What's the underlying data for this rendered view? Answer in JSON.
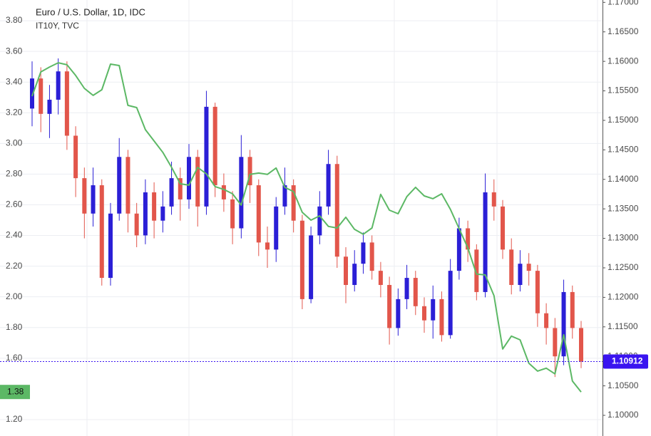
{
  "chart_data": {
    "type": "candlestick",
    "title": "Euro / U.S. Dollar, 1D, IDC",
    "open": [
      1.152,
      1.1571,
      1.1511,
      1.1535,
      1.1583,
      1.1474,
      1.1402,
      1.1342,
      1.139,
      1.1233,
      1.1342,
      1.1438,
      1.1342,
      1.1305,
      1.1378,
      1.133,
      1.1354,
      1.1402,
      1.1366,
      1.1438,
      1.1354,
      1.1523,
      1.139,
      1.1366,
      1.1317,
      1.1438,
      1.139,
      1.1293,
      1.1281,
      1.1354,
      1.139,
      1.133,
      1.1197,
      1.1305,
      1.1354,
      1.1426,
      1.1269,
      1.1221,
      1.1257,
      1.1293,
      1.1245,
      1.1221,
      1.1148,
      1.1197,
      1.1233,
      1.1185,
      1.1161,
      1.1197,
      1.1136,
      1.1245,
      1.1317,
      1.1281,
      1.1209,
      1.1378,
      1.1354,
      1.1281,
      1.1221,
      1.1257,
      1.1245,
      1.1173,
      1.1148,
      1.11,
      1.1209,
      1.1148
    ],
    "high": [
      1.16,
      1.159,
      1.156,
      1.1605,
      1.16,
      1.149,
      1.142,
      1.142,
      1.14,
      1.136,
      1.147,
      1.145,
      1.136,
      1.14,
      1.1395,
      1.138,
      1.143,
      1.142,
      1.146,
      1.145,
      1.155,
      1.153,
      1.141,
      1.138,
      1.1475,
      1.145,
      1.14,
      1.132,
      1.137,
      1.142,
      1.14,
      1.134,
      1.132,
      1.138,
      1.145,
      1.144,
      1.1285,
      1.128,
      1.131,
      1.1305,
      1.126,
      1.1235,
      1.1215,
      1.1255,
      1.1245,
      1.12,
      1.122,
      1.121,
      1.1265,
      1.1335,
      1.133,
      1.129,
      1.141,
      1.14,
      1.1365,
      1.13,
      1.128,
      1.1275,
      1.1255,
      1.119,
      1.1165,
      1.123,
      1.122,
      1.116
    ],
    "low": [
      1.149,
      1.148,
      1.147,
      1.151,
      1.145,
      1.137,
      1.13,
      1.132,
      1.122,
      1.122,
      1.133,
      1.131,
      1.1285,
      1.129,
      1.13,
      1.131,
      1.134,
      1.133,
      1.135,
      1.132,
      1.134,
      1.137,
      1.1345,
      1.129,
      1.13,
      1.136,
      1.127,
      1.125,
      1.126,
      1.134,
      1.131,
      1.118,
      1.119,
      1.129,
      1.134,
      1.125,
      1.119,
      1.121,
      1.124,
      1.123,
      1.12,
      1.112,
      1.1135,
      1.118,
      1.117,
      1.114,
      1.113,
      1.1125,
      1.113,
      1.123,
      1.126,
      1.1195,
      1.12,
      1.133,
      1.1265,
      1.1205,
      1.121,
      1.122,
      1.115,
      1.112,
      1.1065,
      1.1085,
      1.113,
      1.108
    ],
    "close": [
      1.1571,
      1.1511,
      1.1535,
      1.1583,
      1.1474,
      1.1402,
      1.1342,
      1.139,
      1.1233,
      1.1342,
      1.1438,
      1.1342,
      1.1305,
      1.1378,
      1.133,
      1.1354,
      1.1402,
      1.1366,
      1.1438,
      1.1354,
      1.1523,
      1.139,
      1.1366,
      1.1317,
      1.1438,
      1.139,
      1.1293,
      1.1281,
      1.1354,
      1.139,
      1.133,
      1.1197,
      1.1305,
      1.1354,
      1.1426,
      1.1269,
      1.1221,
      1.1257,
      1.1293,
      1.1245,
      1.1221,
      1.1148,
      1.1197,
      1.1233,
      1.1185,
      1.1161,
      1.1197,
      1.1136,
      1.1245,
      1.1317,
      1.1281,
      1.1209,
      1.1378,
      1.1354,
      1.1281,
      1.1221,
      1.1257,
      1.1245,
      1.1173,
      1.1148,
      1.11,
      1.1209,
      1.1148,
      1.10912
    ],
    "up_color": "#2b1fd6",
    "down_color": "#e2564b",
    "last_color": "#3a14f0",
    "series": [
      {
        "name": "IT10Y, TVC",
        "color": "#5cb865",
        "values": [
          3.308,
          3.466,
          3.498,
          3.526,
          3.513,
          3.443,
          3.359,
          3.313,
          3.35,
          3.517,
          3.508,
          3.248,
          3.234,
          3.09,
          3.016,
          2.942,
          2.844,
          2.737,
          2.728,
          2.844,
          2.802,
          2.719,
          2.7,
          2.672,
          2.598,
          2.798,
          2.807,
          2.798,
          2.84,
          2.714,
          2.686,
          2.551,
          2.5,
          2.528,
          2.459,
          2.449,
          2.519,
          2.44,
          2.408,
          2.449,
          2.668,
          2.565,
          2.542,
          2.654,
          2.714,
          2.658,
          2.64,
          2.672,
          2.57,
          2.445,
          2.319,
          2.148,
          2.143,
          2.008,
          1.66,
          1.744,
          1.72,
          1.567,
          1.516,
          1.535,
          1.498,
          1.753,
          1.451,
          1.38
        ]
      }
    ],
    "ylim": [
      1.093,
      3.935
    ],
    "yticks": [
      {
        "value": 3.8,
        "label": "3.80"
      },
      {
        "value": 3.6,
        "label": "3.60"
      },
      {
        "value": 3.4,
        "label": "3.40"
      },
      {
        "value": 3.2,
        "label": "3.20"
      },
      {
        "value": 3.0,
        "label": "3.00"
      },
      {
        "value": 2.8,
        "label": "2.80"
      },
      {
        "value": 2.6,
        "label": "2.60"
      },
      {
        "value": 2.4,
        "label": "2.40"
      },
      {
        "value": 2.2,
        "label": "2.20"
      },
      {
        "value": 2.0,
        "label": "2.00"
      },
      {
        "value": 1.8,
        "label": "1.80"
      },
      {
        "value": 1.6,
        "label": "1.60"
      },
      {
        "value": 1.2,
        "label": "1.20"
      }
    ],
    "y2lim": [
      1.0965,
      1.1704
    ],
    "y2ticks": [
      {
        "value": 1.17,
        "label": "1.17000"
      },
      {
        "value": 1.165,
        "label": "1.16500"
      },
      {
        "value": 1.16,
        "label": "1.16000"
      },
      {
        "value": 1.155,
        "label": "1.15500"
      },
      {
        "value": 1.15,
        "label": "1.15000"
      },
      {
        "value": 1.145,
        "label": "1.14500"
      },
      {
        "value": 1.14,
        "label": "1.14000"
      },
      {
        "value": 1.135,
        "label": "1.13500"
      },
      {
        "value": 1.13,
        "label": "1.13000"
      },
      {
        "value": 1.125,
        "label": "1.12500"
      },
      {
        "value": 1.12,
        "label": "1.12000"
      },
      {
        "value": 1.115,
        "label": "1.11500"
      },
      {
        "value": 1.11,
        "label": "1.11000"
      },
      {
        "value": 1.105,
        "label": "1.10500"
      },
      {
        "value": 1.1,
        "label": "1.10000"
      }
    ],
    "grid": true
  }
}
